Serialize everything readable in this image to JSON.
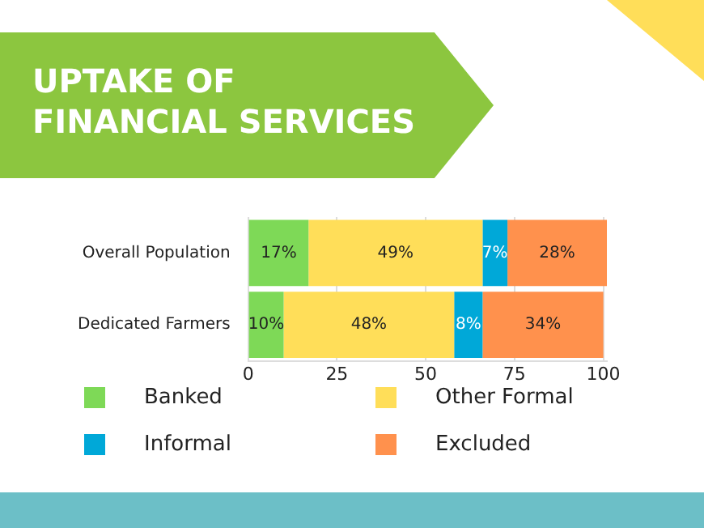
{
  "chart_data": {
    "type": "bar",
    "title": "UPTAKE OF FINANCIAL SERVICES",
    "orientation": "horizontal",
    "stacked": true,
    "categories": [
      "Overall Population",
      "Dedicated Farmers"
    ],
    "series": [
      {
        "name": "Banked",
        "color": "#7ed957",
        "values": [
          17,
          10
        ],
        "value_labels": [
          "17%",
          "10%"
        ]
      },
      {
        "name": "Other Formal",
        "color": "#ffde59",
        "values": [
          49,
          48
        ],
        "value_labels": [
          "49%",
          "48%"
        ]
      },
      {
        "name": "Informal",
        "color": "#00a8d8",
        "values": [
          7,
          8
        ],
        "value_labels": [
          "7%",
          "8%"
        ]
      },
      {
        "name": "Excluded",
        "color": "#ff914d",
        "values": [
          28,
          34
        ],
        "value_labels": [
          "28%",
          "34%"
        ]
      }
    ],
    "xlim": [
      0,
      101
    ],
    "xticks": [
      0,
      25,
      50,
      75,
      100
    ],
    "grid": "x",
    "legend": "bottom"
  }
}
